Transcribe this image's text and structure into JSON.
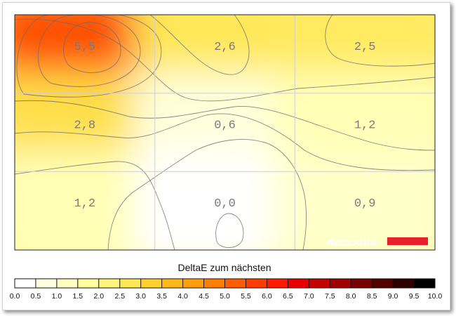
{
  "chart_data": {
    "type": "heatmap",
    "grid": {
      "rows": 3,
      "cols": 3
    },
    "values": [
      [
        5.5,
        2.6,
        2.5
      ],
      [
        2.8,
        0.6,
        1.2
      ],
      [
        1.2,
        0.0,
        0.9
      ]
    ],
    "labels": [
      [
        "5,5",
        "2,6",
        "2,5"
      ],
      [
        "2,8",
        "0,6",
        "1,2"
      ],
      [
        "1,2",
        "0,0",
        "0,9"
      ]
    ],
    "grid_lines": true,
    "contour_lines": true,
    "colorbar": {
      "title": "DeltaE zum nächsten",
      "min": 0.0,
      "max": 10.0,
      "step": 0.5,
      "ticks": [
        "0.0",
        "0.5",
        "1.0",
        "1.5",
        "2.0",
        "2.5",
        "3.0",
        "3.5",
        "4.0",
        "4.5",
        "5.0",
        "5.5",
        "6.0",
        "6.5",
        "7.0",
        "7.5",
        "8.0",
        "8.5",
        "9.0",
        "9.5",
        "10.0"
      ],
      "colors": [
        "#ffffff",
        "#ffffe0",
        "#ffffc0",
        "#ffff9e",
        "#fff47a",
        "#ffe654",
        "#ffd02e",
        "#ffb818",
        "#ff9e0a",
        "#ff7e00",
        "#ff5e00",
        "#ff3c00",
        "#ff1a00",
        "#e80000",
        "#c40000",
        "#a00000",
        "#780000",
        "#520000",
        "#300000",
        "#000000"
      ]
    }
  },
  "branding": {
    "text": "datacolor",
    "bar_color": "#e8202a"
  }
}
